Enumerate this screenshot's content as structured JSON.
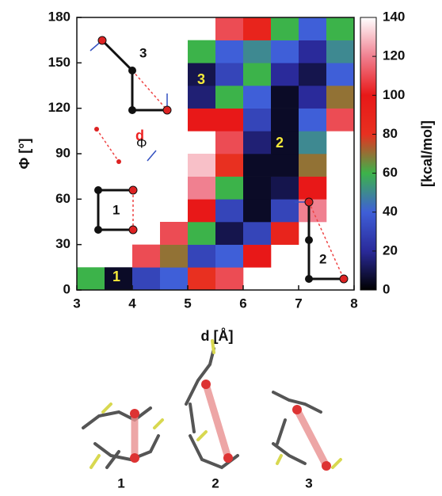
{
  "chart_data": {
    "type": "heatmap",
    "xlabel": "d [Å]",
    "ylabel": "Φ [°]",
    "colorbar_label": "[kcal/mol]",
    "xlim": [
      3,
      8
    ],
    "ylim": [
      0,
      180
    ],
    "xticks": [
      3,
      4,
      5,
      6,
      7,
      8
    ],
    "yticks": [
      0,
      30,
      60,
      90,
      120,
      150,
      180
    ],
    "xbins": [
      3,
      3.5,
      4,
      4.5,
      5,
      5.5,
      6,
      6.5,
      7,
      7.5,
      8
    ],
    "ybins": [
      0,
      15,
      30,
      45,
      60,
      75,
      90,
      105,
      120,
      135,
      150,
      165,
      180
    ],
    "z": [
      [
        60,
        5,
        30,
        40,
        80,
        110,
        null,
        null,
        null,
        null
      ],
      [
        null,
        null,
        110,
        70,
        30,
        40,
        100,
        null,
        null,
        null
      ],
      [
        null,
        null,
        null,
        110,
        60,
        10,
        30,
        90,
        null,
        null
      ],
      [
        null,
        null,
        null,
        null,
        100,
        30,
        5,
        30,
        120,
        null
      ],
      [
        null,
        null,
        null,
        null,
        120,
        60,
        5,
        10,
        100,
        null
      ],
      [
        null,
        null,
        null,
        null,
        130,
        80,
        5,
        5,
        70,
        null
      ],
      [
        null,
        null,
        null,
        null,
        null,
        110,
        15,
        5,
        50,
        null
      ],
      [
        null,
        null,
        null,
        null,
        100,
        100,
        30,
        5,
        40,
        110
      ],
      [
        null,
        null,
        null,
        null,
        15,
        60,
        40,
        5,
        20,
        70
      ],
      [
        null,
        null,
        null,
        null,
        10,
        30,
        60,
        20,
        10,
        40
      ],
      [
        null,
        null,
        null,
        null,
        60,
        40,
        50,
        40,
        20,
        50
      ],
      [
        null,
        null,
        null,
        null,
        null,
        110,
        90,
        60,
        40,
        60
      ]
    ],
    "clim": [
      0,
      140
    ],
    "cticks": [
      0,
      20,
      40,
      60,
      80,
      100,
      120,
      140
    ],
    "colormap": [
      "#000000",
      "#2a2a9a",
      "#3f5fd8",
      "#3cb34a",
      "#e83020",
      "#e81818",
      "#f08090",
      "#ffffff"
    ],
    "basin_labels": [
      "1",
      "2",
      "3"
    ],
    "schematic_labels": [
      "3",
      "d",
      "Φ",
      "1",
      "2"
    ]
  },
  "images": {
    "labels": [
      "1",
      "2",
      "3"
    ]
  }
}
